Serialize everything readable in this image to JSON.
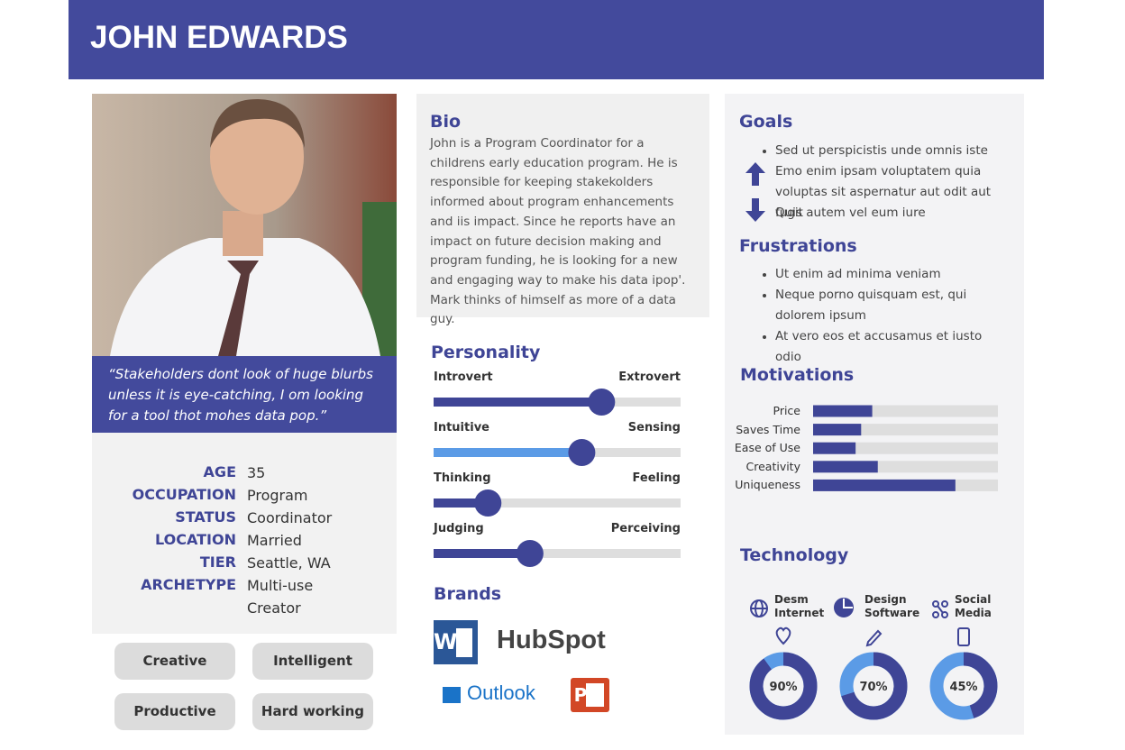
{
  "header": {
    "title": "JOHN EDWARDS"
  },
  "quote": "“Stakeholders dont look of huge blurbs unless it is eye-catching, I om looking for a tool thot mohes data pop.”",
  "profile": [
    {
      "label": "AGE",
      "value": 35
    },
    {
      "label": "OCCUPATION",
      "value": "Program"
    },
    {
      "label": "STATUS",
      "value": "Coordinator"
    },
    {
      "label": "LOCATION",
      "value": "Married"
    },
    {
      "label": "TIER",
      "value": "Seattle, WA"
    },
    {
      "label": "ARCHETYPE",
      "value": "Multi-use Creator"
    }
  ],
  "traits": [
    "Creative",
    "Intelligent",
    "Productive",
    "Hard working"
  ],
  "bio": {
    "title": "Bio",
    "text": "John is a Program Coordinator for a childrens early education program.  He is responsible for keeping stakekolders informed about program enhancements and iis impact. Since he reports have an impact on future decision making and program funding, he is looking for a new and engaging way to make his data ipop'. Mark thinks of himself as more of a data guy."
  },
  "personality": {
    "title": "Personality",
    "xlim": [
      0,
      100
    ],
    "scales": [
      {
        "left": "Introvert",
        "right": "Extrovert",
        "value": 68
      },
      {
        "left": "Intuitive",
        "right": "Sensing",
        "value": 60
      },
      {
        "left": "Thinking",
        "right": "Feeling",
        "value": 22
      },
      {
        "left": "Judging",
        "right": "Perceiving",
        "value": 39
      }
    ]
  },
  "brands": {
    "title": "Brands",
    "items": [
      "W",
      "HubSpot",
      "Outlook",
      "P"
    ]
  },
  "goals": {
    "title": "Goals",
    "items": [
      "Sed ut perspicistis unde omnis iste",
      "Emo enim ipsam voluptatem quia voluptas sit aspernatur aut odit aut fugit",
      "Quis autem vel eum iure"
    ]
  },
  "frustrations": {
    "title": "Frustrations",
    "items": [
      "Ut enim ad minima veniam",
      "Neque porno quisquam est, qui dolorem ipsum",
      "At vero eos et accusamus et iusto odio"
    ]
  },
  "motivations": {
    "title": "Motivations",
    "xlim": [
      0,
      100
    ],
    "categories": [
      "Price",
      "Saves Time",
      "Ease of Use",
      "Creativity",
      "Uniqueness"
    ],
    "values": [
      32,
      26,
      23,
      35,
      77
    ]
  },
  "technology": {
    "title": "Technology",
    "items": [
      {
        "label": "Desm Internet",
        "value": 90,
        "value_label": "90%"
      },
      {
        "label": "Design Software",
        "value": 70,
        "value_label": "70%"
      },
      {
        "label": "Social Media",
        "value": 45,
        "value_label": "45%"
      }
    ]
  }
}
